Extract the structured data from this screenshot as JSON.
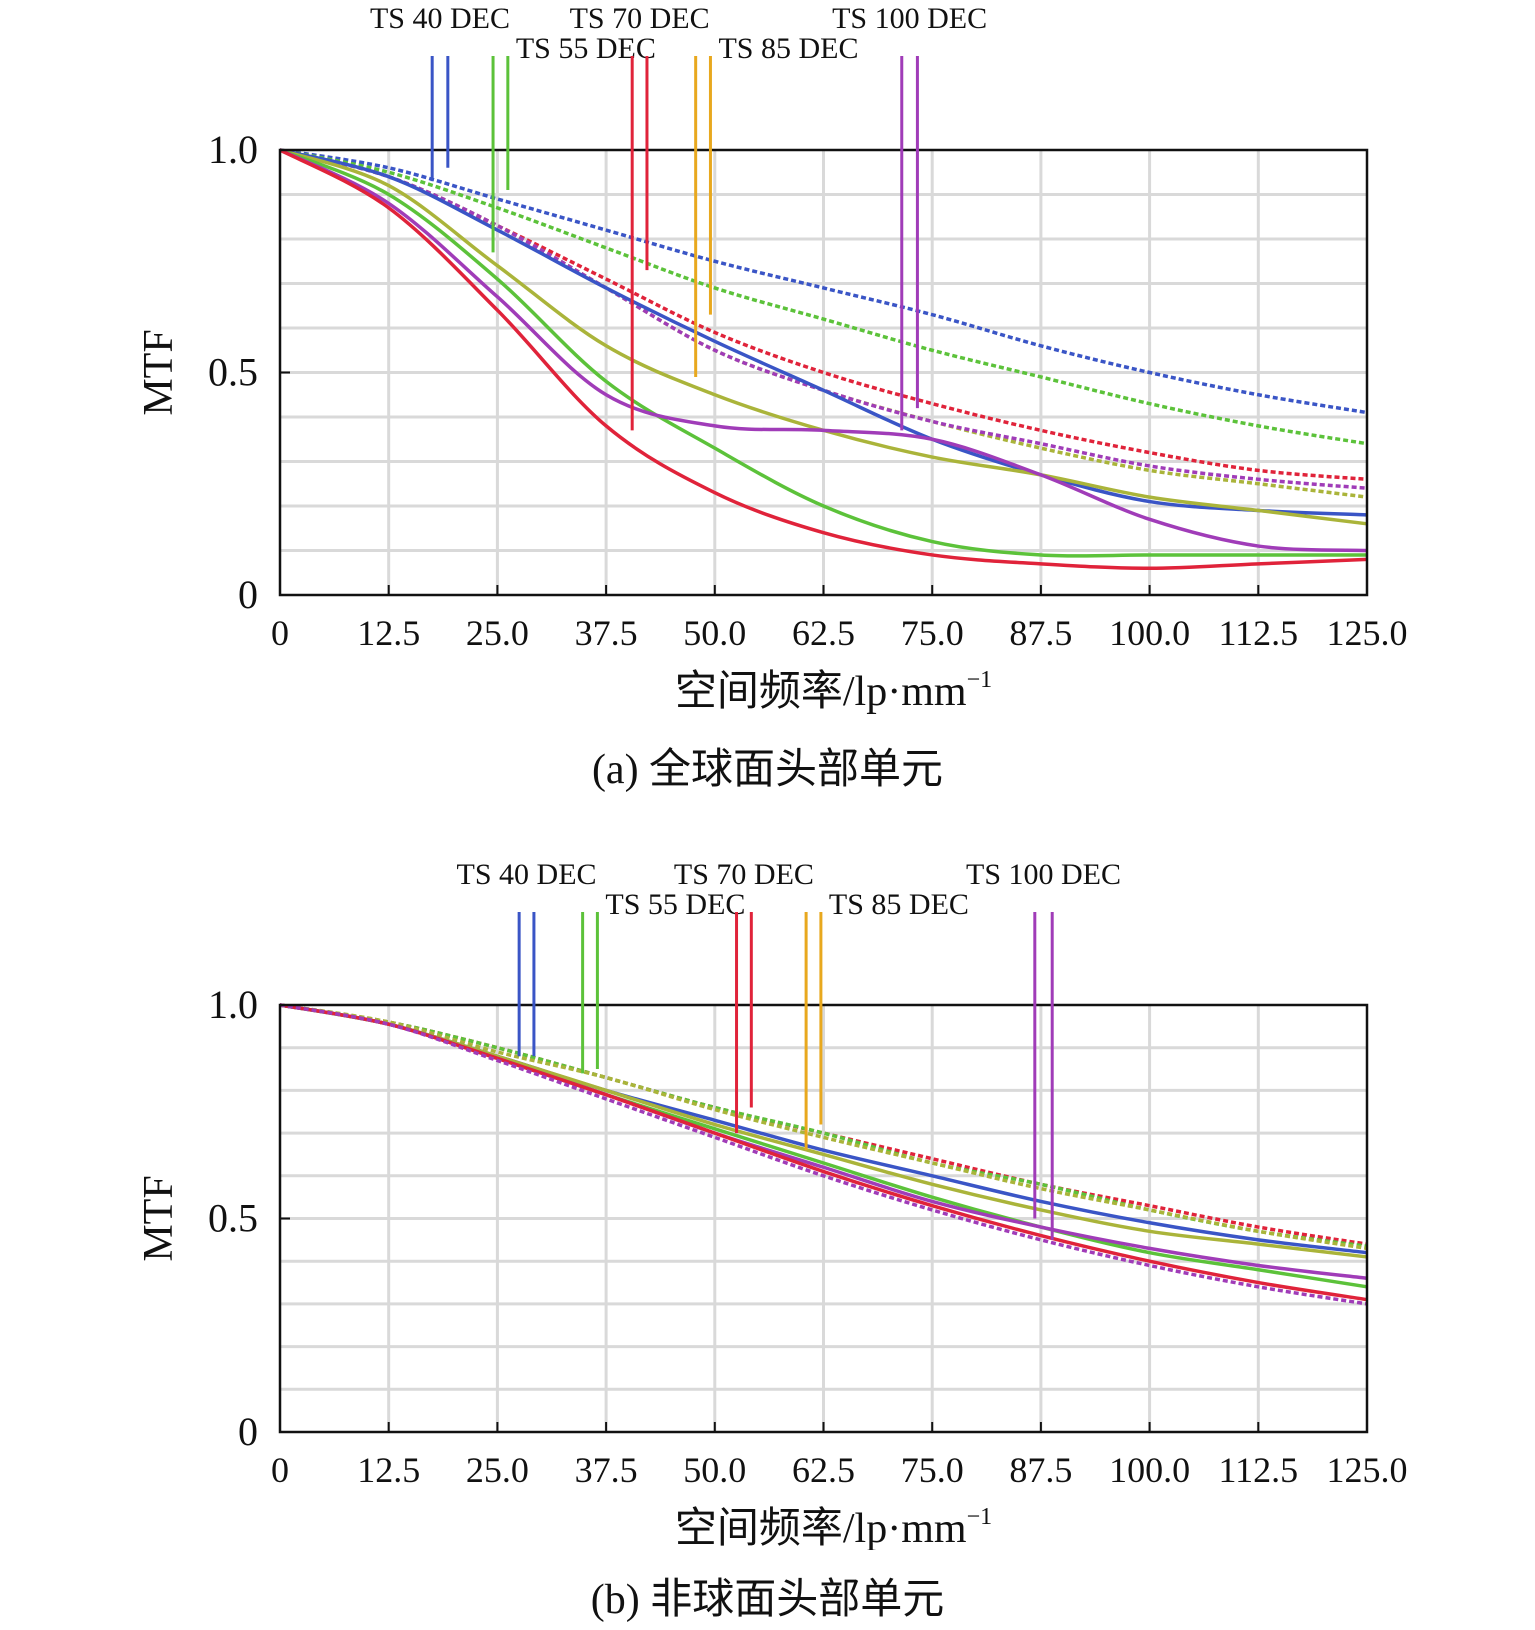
{
  "chart_data": [
    {
      "type": "line",
      "caption": "(a) 全球面头部单元",
      "xlabel": "空间频率/lp·mm",
      "xlabel_sup": "−1",
      "ylabel": "MTF",
      "xlim": [
        0,
        125
      ],
      "ylim": [
        0,
        1
      ],
      "x_ticks": [
        0,
        12.5,
        25,
        37.5,
        50,
        62.5,
        75,
        87.5,
        100,
        112.5,
        125
      ],
      "x_tick_labels": [
        "0",
        "12.5",
        "25.0",
        "37.5",
        "50.0",
        "62.5",
        "75.0",
        "87.5",
        "100.0",
        "112.5",
        "125.0"
      ],
      "y_ticks": [
        0,
        0.5,
        1.0
      ],
      "y_tick_labels": [
        "0",
        "0.5",
        "1.0"
      ],
      "grid": true,
      "colors": {
        "blue": "#3a55c6",
        "green": "#5cc23a",
        "red": "#e0233a",
        "olive": "#aab43a",
        "purple": "#a03cb8",
        "orange": "#e8a81e",
        "lightgreen": "#8fd45a"
      },
      "field_markers": [
        {
          "label": "TS 40 DEC",
          "color": "#3a55c6",
          "x1": 17.5,
          "x2": 19.3,
          "y_end1": 0.93,
          "y_end2": 0.96
        },
        {
          "label": "TS 55 DEC",
          "color": "#5cc23a",
          "x1": 24.5,
          "x2": 26.2,
          "y_end1": 0.77,
          "y_end2": 0.91
        },
        {
          "label": "TS 70 DEC",
          "color": "#e0233a",
          "x1": 40.5,
          "x2": 42.2,
          "y_end1": 0.37,
          "y_end2": 0.73
        },
        {
          "label": "TS 85 DEC",
          "color": "#e8a81e",
          "x1": 47.8,
          "x2": 49.5,
          "y_end1": 0.49,
          "y_end2": 0.63
        },
        {
          "label": "TS 100 DEC",
          "color": "#a03cb8",
          "x1": 71.5,
          "x2": 73.3,
          "y_end1": 0.37,
          "y_end2": 0.42
        }
      ],
      "series": [
        {
          "color": "#3a55c6",
          "dash": true,
          "x": [
            0,
            12.5,
            25,
            37.5,
            50,
            62.5,
            75,
            87.5,
            100,
            112.5,
            125
          ],
          "y": [
            1.0,
            0.96,
            0.89,
            0.82,
            0.75,
            0.69,
            0.63,
            0.56,
            0.5,
            0.45,
            0.41
          ]
        },
        {
          "color": "#5cc23a",
          "dash": true,
          "x": [
            0,
            12.5,
            25,
            37.5,
            50,
            62.5,
            75,
            87.5,
            100,
            112.5,
            125
          ],
          "y": [
            1.0,
            0.95,
            0.87,
            0.78,
            0.69,
            0.62,
            0.55,
            0.49,
            0.43,
            0.38,
            0.34
          ]
        },
        {
          "color": "#e0233a",
          "dash": true,
          "x": [
            0,
            12.5,
            25,
            37.5,
            50,
            62.5,
            75,
            87.5,
            100,
            112.5,
            125
          ],
          "y": [
            1.0,
            0.94,
            0.83,
            0.71,
            0.59,
            0.5,
            0.43,
            0.37,
            0.32,
            0.28,
            0.26
          ]
        },
        {
          "color": "#aab43a",
          "dash": true,
          "x": [
            0,
            12.5,
            25,
            37.5,
            50,
            62.5,
            75,
            87.5,
            100,
            112.5,
            125
          ],
          "y": [
            1.0,
            0.94,
            0.83,
            0.69,
            0.55,
            0.46,
            0.39,
            0.33,
            0.28,
            0.25,
            0.22
          ]
        },
        {
          "color": "#a03cb8",
          "dash": true,
          "x": [
            0,
            12.5,
            25,
            37.5,
            50,
            62.5,
            75,
            87.5,
            100,
            112.5,
            125
          ],
          "y": [
            1.0,
            0.94,
            0.83,
            0.69,
            0.55,
            0.46,
            0.39,
            0.34,
            0.29,
            0.26,
            0.24
          ]
        },
        {
          "color": "#3a55c6",
          "dash": false,
          "x": [
            0,
            12.5,
            25,
            37.5,
            50,
            62.5,
            75,
            87.5,
            100,
            112.5,
            125
          ],
          "y": [
            1.0,
            0.94,
            0.82,
            0.69,
            0.57,
            0.46,
            0.35,
            0.27,
            0.21,
            0.19,
            0.18
          ]
        },
        {
          "color": "#aab43a",
          "dash": false,
          "x": [
            0,
            12.5,
            25,
            37.5,
            50,
            62.5,
            75,
            87.5,
            100,
            112.5,
            125
          ],
          "y": [
            1.0,
            0.92,
            0.74,
            0.56,
            0.45,
            0.37,
            0.31,
            0.27,
            0.22,
            0.19,
            0.16
          ]
        },
        {
          "color": "#5cc23a",
          "dash": false,
          "x": [
            0,
            12.5,
            25,
            37.5,
            50,
            62.5,
            75,
            87.5,
            100,
            112.5,
            125
          ],
          "y": [
            1.0,
            0.9,
            0.71,
            0.48,
            0.33,
            0.2,
            0.12,
            0.09,
            0.09,
            0.09,
            0.09
          ]
        },
        {
          "color": "#a03cb8",
          "dash": false,
          "x": [
            0,
            12.5,
            25,
            37.5,
            50,
            62.5,
            75,
            87.5,
            100,
            112.5,
            125
          ],
          "y": [
            1.0,
            0.88,
            0.67,
            0.45,
            0.38,
            0.37,
            0.35,
            0.27,
            0.17,
            0.11,
            0.1
          ]
        },
        {
          "color": "#e0233a",
          "dash": false,
          "x": [
            0,
            12.5,
            25,
            37.5,
            50,
            62.5,
            75,
            87.5,
            100,
            112.5,
            125
          ],
          "y": [
            1.0,
            0.87,
            0.64,
            0.38,
            0.23,
            0.14,
            0.09,
            0.07,
            0.06,
            0.07,
            0.08
          ]
        }
      ]
    },
    {
      "type": "line",
      "caption": "(b) 非球面头部单元",
      "xlabel": "空间频率/lp·mm",
      "xlabel_sup": "−1",
      "ylabel": "MTF",
      "xlim": [
        0,
        125
      ],
      "ylim": [
        0,
        1
      ],
      "x_ticks": [
        0,
        12.5,
        25,
        37.5,
        50,
        62.5,
        75,
        87.5,
        100,
        112.5,
        125
      ],
      "x_tick_labels": [
        "0",
        "12.5",
        "25.0",
        "37.5",
        "50.0",
        "62.5",
        "75.0",
        "87.5",
        "100.0",
        "112.5",
        "125.0"
      ],
      "y_ticks": [
        0,
        0.5,
        1.0
      ],
      "y_tick_labels": [
        "0",
        "0.5",
        "1.0"
      ],
      "grid": true,
      "field_markers": [
        {
          "label": "TS 40 DEC",
          "color": "#3a55c6",
          "x1": 27.5,
          "x2": 29.2,
          "y_end1": 0.88,
          "y_end2": 0.88
        },
        {
          "label": "TS 55 DEC",
          "color": "#5cc23a",
          "x1": 34.8,
          "x2": 36.5,
          "y_end1": 0.84,
          "y_end2": 0.85
        },
        {
          "label": "TS 70 DEC",
          "color": "#e0233a",
          "x1": 52.5,
          "x2": 54.2,
          "y_end1": 0.7,
          "y_end2": 0.76
        },
        {
          "label": "TS 85 DEC",
          "color": "#e8a81e",
          "x1": 60.5,
          "x2": 62.2,
          "y_end1": 0.66,
          "y_end2": 0.72
        },
        {
          "label": "TS 100 DEC",
          "color": "#a03cb8",
          "x1": 86.8,
          "x2": 88.8,
          "y_end1": 0.5,
          "y_end2": 0.45
        }
      ],
      "series": [
        {
          "color": "#e0233a",
          "dash": true,
          "x": [
            0,
            12.5,
            25,
            37.5,
            50,
            62.5,
            75,
            87.5,
            100,
            112.5,
            125
          ],
          "y": [
            1.0,
            0.96,
            0.9,
            0.83,
            0.76,
            0.7,
            0.64,
            0.58,
            0.53,
            0.48,
            0.44
          ]
        },
        {
          "color": "#5cc23a",
          "dash": true,
          "x": [
            0,
            12.5,
            25,
            37.5,
            50,
            62.5,
            75,
            87.5,
            100,
            112.5,
            125
          ],
          "y": [
            1.0,
            0.96,
            0.9,
            0.83,
            0.76,
            0.7,
            0.63,
            0.58,
            0.52,
            0.47,
            0.435
          ]
        },
        {
          "color": "#aab43a",
          "dash": true,
          "x": [
            0,
            12.5,
            25,
            37.5,
            50,
            62.5,
            75,
            87.5,
            100,
            112.5,
            125
          ],
          "y": [
            1.0,
            0.96,
            0.89,
            0.83,
            0.755,
            0.69,
            0.63,
            0.57,
            0.52,
            0.47,
            0.43
          ]
        },
        {
          "color": "#3a55c6",
          "dash": false,
          "x": [
            0,
            12.5,
            25,
            37.5,
            50,
            62.5,
            75,
            87.5,
            100,
            112.5,
            125
          ],
          "y": [
            1.0,
            0.955,
            0.88,
            0.8,
            0.73,
            0.66,
            0.6,
            0.54,
            0.49,
            0.45,
            0.42
          ]
        },
        {
          "color": "#aab43a",
          "dash": false,
          "x": [
            0,
            12.5,
            25,
            37.5,
            50,
            62.5,
            75,
            87.5,
            100,
            112.5,
            125
          ],
          "y": [
            1.0,
            0.955,
            0.88,
            0.8,
            0.72,
            0.65,
            0.58,
            0.52,
            0.47,
            0.44,
            0.41
          ]
        },
        {
          "color": "#5cc23a",
          "dash": false,
          "x": [
            0,
            12.5,
            25,
            37.5,
            50,
            62.5,
            75,
            87.5,
            100,
            112.5,
            125
          ],
          "y": [
            1.0,
            0.955,
            0.875,
            0.79,
            0.71,
            0.63,
            0.55,
            0.48,
            0.42,
            0.38,
            0.34
          ]
        },
        {
          "color": "#a03cb8",
          "dash": false,
          "x": [
            0,
            12.5,
            25,
            37.5,
            50,
            62.5,
            75,
            87.5,
            100,
            112.5,
            125
          ],
          "y": [
            1.0,
            0.955,
            0.875,
            0.79,
            0.7,
            0.62,
            0.54,
            0.48,
            0.43,
            0.39,
            0.36
          ]
        },
        {
          "color": "#e0233a",
          "dash": false,
          "x": [
            0,
            12.5,
            25,
            37.5,
            50,
            62.5,
            75,
            87.5,
            100,
            112.5,
            125
          ],
          "y": [
            1.0,
            0.955,
            0.875,
            0.79,
            0.7,
            0.61,
            0.53,
            0.46,
            0.4,
            0.35,
            0.31
          ]
        },
        {
          "color": "#a03cb8",
          "dash": true,
          "x": [
            0,
            12.5,
            25,
            37.5,
            50,
            62.5,
            75,
            87.5,
            100,
            112.5,
            125
          ],
          "y": [
            1.0,
            0.955,
            0.87,
            0.78,
            0.69,
            0.6,
            0.52,
            0.45,
            0.39,
            0.34,
            0.3
          ]
        }
      ]
    }
  ]
}
